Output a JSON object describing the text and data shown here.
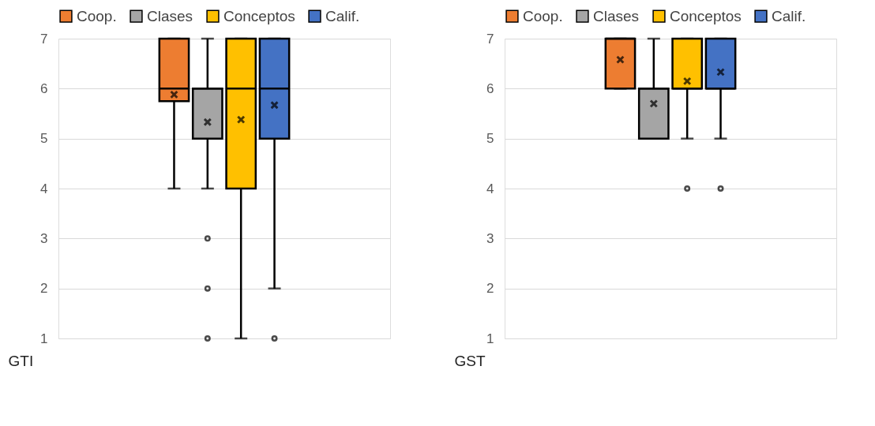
{
  "chart_data": [
    {
      "type": "box",
      "title": "GTI",
      "categories": [
        null
      ],
      "ylim": [
        1,
        7
      ],
      "yticks": [
        1,
        2,
        3,
        4,
        5,
        6,
        7
      ],
      "grid": "y",
      "legend": "top",
      "tick_labels": "y",
      "series": [
        {
          "name": "Coop.",
          "color": "#ed7d31",
          "boxes": [
            {
              "low": 4,
              "q1": 5.75,
              "median": 6,
              "q3": 7,
              "high": 7,
              "mean": 5.88
            }
          ]
        },
        {
          "name": "Clases",
          "color": "#a5a5a5",
          "boxes": [
            {
              "low": 4,
              "q1": 5,
              "median": 6,
              "q3": 6,
              "high": 7,
              "mean": 5.33,
              "outliers": [
                3,
                2,
                1
              ]
            }
          ]
        },
        {
          "name": "Conceptos",
          "color": "#ffc000",
          "boxes": [
            {
              "low": 1,
              "q1": 4,
              "median": 6,
              "q3": 7,
              "high": 7,
              "mean": 5.38
            }
          ]
        },
        {
          "name": "Calif.",
          "color": "#4472c4",
          "boxes": [
            {
              "low": 2,
              "q1": 5,
              "median": 6,
              "q3": 7,
              "high": 7,
              "mean": 5.67,
              "outliers": [
                1
              ]
            }
          ]
        }
      ]
    },
    {
      "type": "box",
      "title": "GST",
      "categories": [
        null
      ],
      "ylim": [
        1,
        7
      ],
      "yticks": [
        1,
        2,
        3,
        4,
        5,
        6,
        7
      ],
      "grid": "y",
      "legend": "top",
      "tick_labels": "y",
      "series": [
        {
          "name": "Coop.",
          "color": "#ed7d31",
          "boxes": [
            {
              "low": 6,
              "q1": 6,
              "median": 7,
              "q3": 7,
              "high": 7,
              "mean": 6.58
            }
          ]
        },
        {
          "name": "Clases",
          "color": "#a5a5a5",
          "boxes": [
            {
              "low": 5,
              "q1": 5,
              "median": 6,
              "q3": 6,
              "high": 7,
              "mean": 5.7
            }
          ]
        },
        {
          "name": "Conceptos",
          "color": "#ffc000",
          "boxes": [
            {
              "low": 5,
              "q1": 6,
              "median": 6,
              "q3": 7,
              "high": 7,
              "mean": 6.15,
              "outliers": [
                4
              ]
            }
          ]
        },
        {
          "name": "Calif.",
          "color": "#4472c4",
          "boxes": [
            {
              "low": 5,
              "q1": 6,
              "median": 6,
              "q3": 7,
              "high": 7,
              "mean": 6.33,
              "outliers": [
                4
              ]
            }
          ]
        }
      ]
    }
  ]
}
